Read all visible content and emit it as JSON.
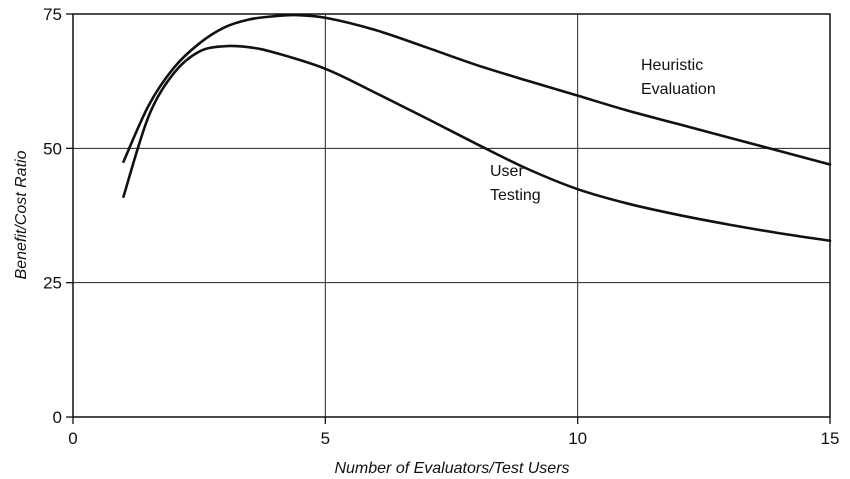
{
  "chart_data": {
    "type": "line",
    "xlabel": "Number of Evaluators/Test Users",
    "ylabel": "Benefit/Cost Ratio",
    "xlim": [
      0,
      15
    ],
    "ylim": [
      0,
      75
    ],
    "xticks": [
      0,
      5,
      10,
      15
    ],
    "yticks": [
      0,
      25,
      50,
      75
    ],
    "grid": true,
    "series": [
      {
        "name": "Heuristic Evaluation",
        "label_lines": [
          "Heuristic",
          "Evaluation"
        ],
        "x": [
          1,
          1.5,
          2,
          2.5,
          3,
          3.5,
          4,
          4.4,
          5,
          6,
          7,
          8,
          9,
          10,
          11,
          12,
          13,
          14,
          15
        ],
        "y": [
          47.5,
          58,
          65,
          69.5,
          72.5,
          74,
          74.6,
          74.8,
          74.3,
          72,
          68.8,
          65.5,
          62.6,
          59.8,
          57,
          54.5,
          52,
          49.5,
          47
        ]
      },
      {
        "name": "User Testing",
        "label_lines": [
          "User",
          "Testing"
        ],
        "x": [
          1,
          1.5,
          2,
          2.5,
          3,
          3.5,
          4,
          5,
          6,
          7,
          8,
          9,
          10,
          11,
          12,
          13,
          14,
          15
        ],
        "y": [
          41,
          56,
          64,
          68,
          69,
          68.8,
          67.8,
          64.8,
          60.3,
          55.6,
          50.8,
          46.2,
          42.4,
          39.7,
          37.6,
          35.8,
          34.2,
          32.8
        ]
      }
    ]
  }
}
